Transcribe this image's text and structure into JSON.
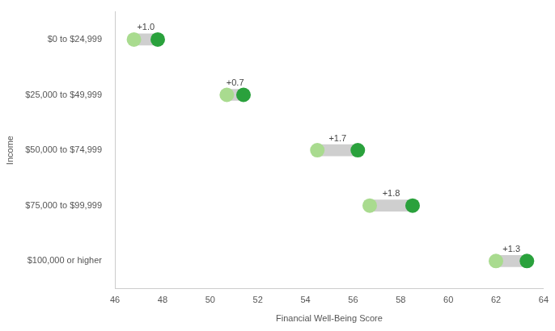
{
  "chart_data": {
    "type": "dumbbell",
    "orientation": "horizontal",
    "categories": [
      "$0 to $24,999",
      "$25,000 to $49,999",
      "$50,000 to $74,999",
      "$75,000 to $99,999",
      "$100,000 or higher"
    ],
    "series": [
      {
        "color": "#a9db8f",
        "values": [
          46.8,
          50.7,
          54.5,
          56.7,
          62.0
        ]
      },
      {
        "color": "#2aa13c",
        "values": [
          47.8,
          51.4,
          56.2,
          58.5,
          63.3
        ]
      }
    ],
    "changes": [
      1.0,
      0.7,
      1.7,
      1.8,
      1.3
    ],
    "change_labels": [
      "+1.0",
      "+0.7",
      "+1.7",
      "+1.8",
      "+1.3"
    ],
    "data_labels": true,
    "xlabel": "Financial Well-Being Score",
    "ylabel": "Income",
    "xlim": [
      46,
      64
    ],
    "xticks": [
      46,
      48,
      50,
      52,
      54,
      56,
      58,
      60,
      62,
      64
    ],
    "grid": false
  }
}
